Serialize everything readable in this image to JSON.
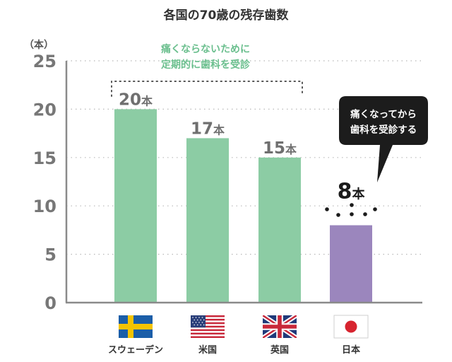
{
  "chart_data": {
    "type": "bar",
    "title": "各国の70歳の残存歯数",
    "y_unit_label": "（本）",
    "ylim": [
      0,
      25
    ],
    "yticks": [
      0,
      5,
      10,
      15,
      20,
      25
    ],
    "grid": true,
    "value_unit": "本",
    "categories": [
      "スウェーデン",
      "米国",
      "英国",
      "日本"
    ],
    "values": [
      20,
      17,
      15,
      8
    ],
    "bar_colors": [
      "#8ccca4",
      "#8ccca4",
      "#8ccca4",
      "#9b86bd"
    ],
    "label_colors": [
      "#6f6f6f",
      "#6f6f6f",
      "#6f6f6f",
      "#1a1a1a"
    ],
    "flags": [
      "sweden-flag",
      "usa-flag",
      "uk-flag",
      "japan-flag"
    ],
    "annotations": {
      "preventive": [
        "痛くならないために",
        "定期的に歯科を受診"
      ],
      "callout": [
        "痛くなってから",
        "歯科を受診する"
      ]
    }
  }
}
